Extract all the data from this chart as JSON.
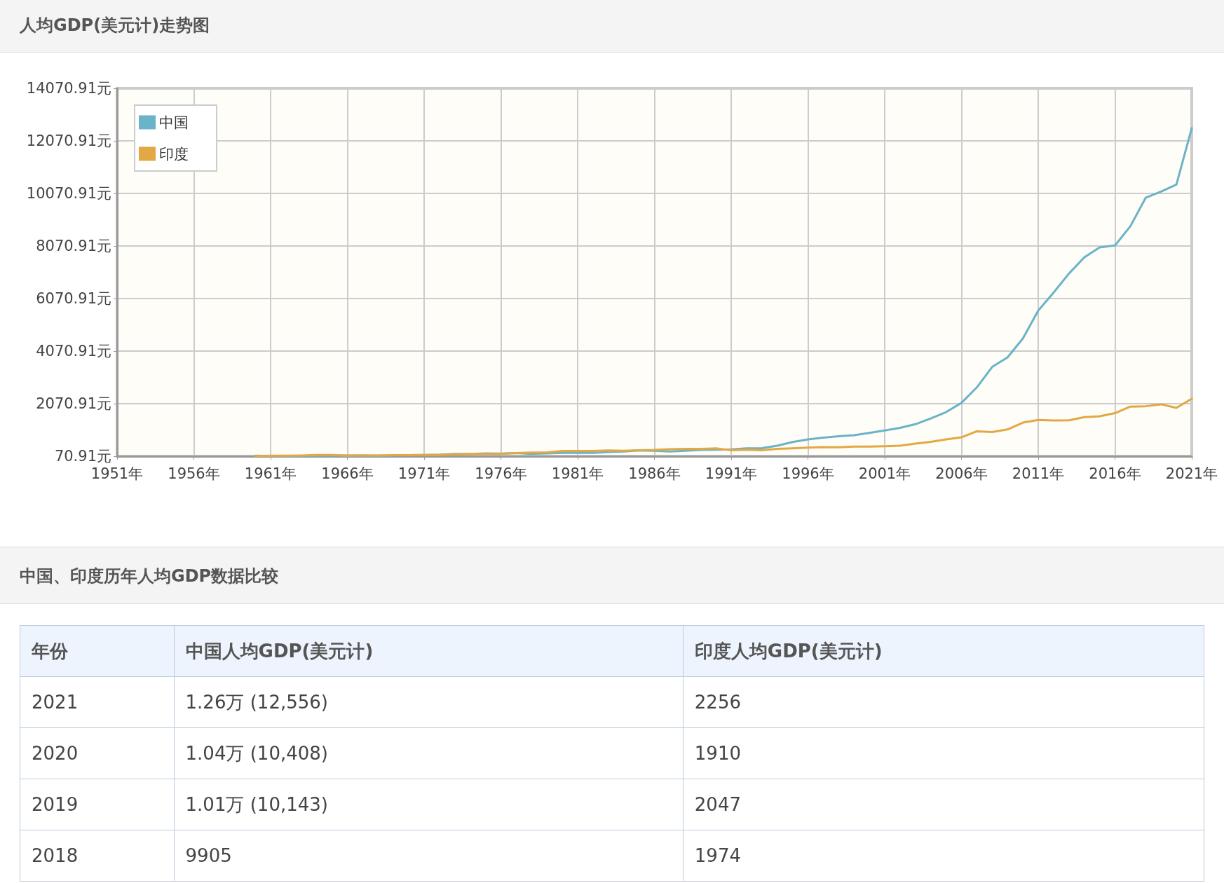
{
  "chart_data": {
    "type": "line",
    "title": "人均GDP(美元计)走势图",
    "annotations": [
      "中国、印度历年人均GDP数据比较",
      "年份",
      "中国人均GDP(美元计)",
      "印度人均GDP(美元计)",
      "2021",
      "1.26万 (12,556)",
      "2256",
      "2020",
      "1.04万 (10,408)",
      "1910",
      "2019",
      "1.01万 (10,143)",
      "2047",
      "2018",
      "9905",
      "1974"
    ],
    "x": [
      1960,
      1961,
      1962,
      1963,
      1964,
      1965,
      1966,
      1967,
      1968,
      1969,
      1970,
      1971,
      1972,
      1973,
      1974,
      1975,
      1976,
      1977,
      1978,
      1979,
      1980,
      1981,
      1982,
      1983,
      1984,
      1985,
      1986,
      1987,
      1988,
      1989,
      1990,
      1991,
      1992,
      1993,
      1994,
      1995,
      1996,
      1997,
      1998,
      1999,
      2000,
      2001,
      2002,
      2003,
      2004,
      2005,
      2006,
      2007,
      2008,
      2009,
      2010,
      2011,
      2012,
      2013,
      2014,
      2015,
      2016,
      2017,
      2018,
      2019,
      2020,
      2021
    ],
    "series": [
      {
        "name": "中国",
        "color": "#6ab3c8",
        "values": [
          90,
          80,
          80,
          80,
          90,
          100,
          100,
          100,
          90,
          100,
          110,
          120,
          130,
          160,
          160,
          180,
          170,
          190,
          160,
          180,
          200,
          200,
          200,
          230,
          250,
          290,
          280,
          250,
          280,
          310,
          320,
          330,
          370,
          380,
          470,
          610,
          710,
          780,
          830,
          870,
          960,
          1050,
          1150,
          1290,
          1510,
          1750,
          2100,
          2690,
          3470,
          3830,
          4550,
          5610,
          6300,
          7020,
          7640,
          8020,
          8090,
          8820,
          9905,
          10143,
          10408,
          12556
        ]
      },
      {
        "name": "印度",
        "color": "#e3a843",
        "values": [
          80,
          90,
          90,
          100,
          120,
          120,
          90,
          100,
          100,
          110,
          110,
          120,
          120,
          140,
          160,
          160,
          160,
          190,
          210,
          220,
          270,
          270,
          270,
          290,
          280,
          300,
          310,
          340,
          350,
          350,
          370,
          300,
          320,
          300,
          350,
          370,
          400,
          420,
          410,
          440,
          440,
          450,
          470,
          550,
          620,
          710,
          790,
          1020,
          990,
          1090,
          1350,
          1450,
          1430,
          1440,
          1560,
          1590,
          1710,
          1960,
          1974,
          2047,
          1910,
          2256
        ]
      }
    ],
    "xlim": [
      1951,
      2021
    ],
    "xticks": [
      {
        "value": 1951,
        "label": "1951年"
      },
      {
        "value": 1956,
        "label": "1956年"
      },
      {
        "value": 1961,
        "label": "1961年"
      },
      {
        "value": 1966,
        "label": "1966年"
      },
      {
        "value": 1971,
        "label": "1971年"
      },
      {
        "value": 1976,
        "label": "1976年"
      },
      {
        "value": 1981,
        "label": "1981年"
      },
      {
        "value": 1986,
        "label": "1986年"
      },
      {
        "value": 1991,
        "label": "1991年"
      },
      {
        "value": 1996,
        "label": "1996年"
      },
      {
        "value": 2001,
        "label": "2001年"
      },
      {
        "value": 2006,
        "label": "2006年"
      },
      {
        "value": 2011,
        "label": "2011年"
      },
      {
        "value": 2016,
        "label": "2016年"
      },
      {
        "value": 2021,
        "label": "2021年"
      }
    ],
    "ylim": [
      70.91,
      14070.91
    ],
    "yticks": [
      {
        "value": 70.91,
        "label": "70.91元"
      },
      {
        "value": 2070.91,
        "label": "2070.91元"
      },
      {
        "value": 4070.91,
        "label": "4070.91元"
      },
      {
        "value": 6070.91,
        "label": "6070.91元"
      },
      {
        "value": 8070.91,
        "label": "8070.91元"
      },
      {
        "value": 10070.91,
        "label": "10070.91元"
      },
      {
        "value": 12070.91,
        "label": "12070.91元"
      },
      {
        "value": 14070.91,
        "label": "14070.91元"
      }
    ],
    "grid": true,
    "legend": "top left",
    "marker": "none",
    "line_style": "solid"
  }
}
